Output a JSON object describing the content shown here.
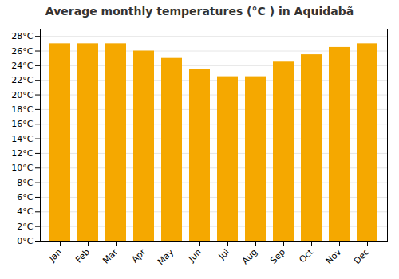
{
  "chart_data": {
    "type": "bar",
    "title": "Average monthly temperatures (°C ) in Aquidabã",
    "categories": [
      "Jan",
      "Feb",
      "Mar",
      "Apr",
      "May",
      "Jun",
      "Jul",
      "Aug",
      "Sep",
      "Oct",
      "Nov",
      "Dec"
    ],
    "values": [
      27.0,
      27.0,
      27.0,
      26.0,
      25.0,
      23.5,
      22.5,
      22.5,
      24.5,
      25.5,
      26.5,
      27.0
    ],
    "color": "#F5A800",
    "ylim": [
      0,
      29
    ],
    "yticks": [
      {
        "value": 0,
        "label": "0°C"
      },
      {
        "value": 2,
        "label": "2°C"
      },
      {
        "value": 4,
        "label": "4°C"
      },
      {
        "value": 6,
        "label": "6°C"
      },
      {
        "value": 8,
        "label": "8°C"
      },
      {
        "value": 10,
        "label": "10°C"
      },
      {
        "value": 12,
        "label": "12°C"
      },
      {
        "value": 14,
        "label": "14°C"
      },
      {
        "value": 16,
        "label": "16°C"
      },
      {
        "value": 18,
        "label": "18°C"
      },
      {
        "value": 20,
        "label": "20°C"
      },
      {
        "value": 22,
        "label": "22°C"
      },
      {
        "value": 24,
        "label": "24°C"
      },
      {
        "value": 26,
        "label": "26°C"
      },
      {
        "value": 28,
        "label": "28°C"
      }
    ],
    "grid": true
  }
}
